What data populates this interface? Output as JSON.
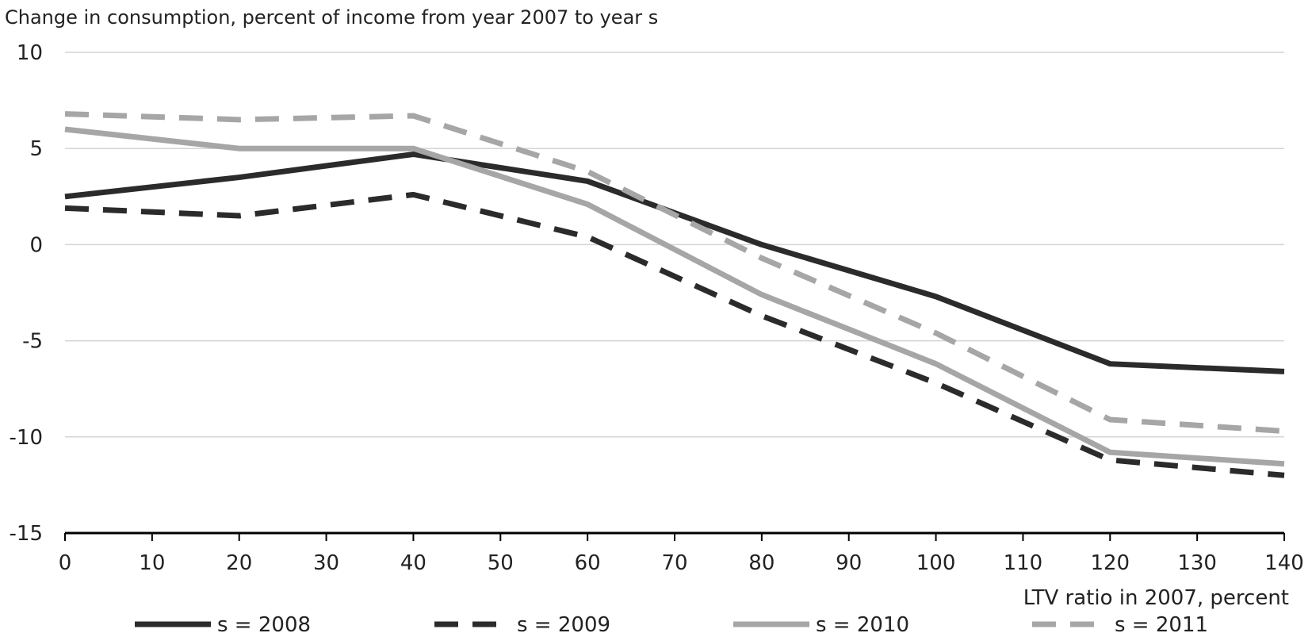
{
  "chart_data": {
    "type": "line",
    "title": "Change in consumption, percent of income from year 2007 to year s",
    "xlabel": "LTV ratio in 2007, percent",
    "ylabel": "",
    "xlim": [
      0,
      140
    ],
    "ylim": [
      -15,
      10
    ],
    "x_ticks": [
      "0",
      "10",
      "20",
      "30",
      "40",
      "50",
      "60",
      "70",
      "80",
      "90",
      "100",
      "110",
      "120",
      "130",
      "140"
    ],
    "y_ticks": [
      "10",
      "5",
      "0",
      "-5",
      "-10",
      "-15"
    ],
    "grid": "horizontal",
    "legend_position": "bottom",
    "x": [
      0,
      20,
      40,
      60,
      80,
      100,
      120,
      140
    ],
    "series": [
      {
        "name": "s = 2008",
        "color": "#2b2b2b",
        "dash": "solid",
        "values": [
          2.5,
          3.5,
          4.7,
          3.3,
          0.0,
          -2.7,
          -6.2,
          -6.6
        ]
      },
      {
        "name": "s = 2009",
        "color": "#2b2b2b",
        "dash": "dashed",
        "values": [
          1.9,
          1.5,
          2.6,
          0.4,
          -3.7,
          -7.2,
          -11.2,
          -12.0
        ]
      },
      {
        "name": "s = 2010",
        "color": "#a6a6a6",
        "dash": "solid",
        "values": [
          6.0,
          5.0,
          5.0,
          2.1,
          -2.6,
          -6.2,
          -10.8,
          -11.4
        ]
      },
      {
        "name": "s = 2011",
        "color": "#a6a6a6",
        "dash": "dashed",
        "values": [
          6.8,
          6.5,
          6.7,
          3.8,
          -0.7,
          -4.6,
          -9.1,
          -9.7
        ]
      }
    ]
  }
}
